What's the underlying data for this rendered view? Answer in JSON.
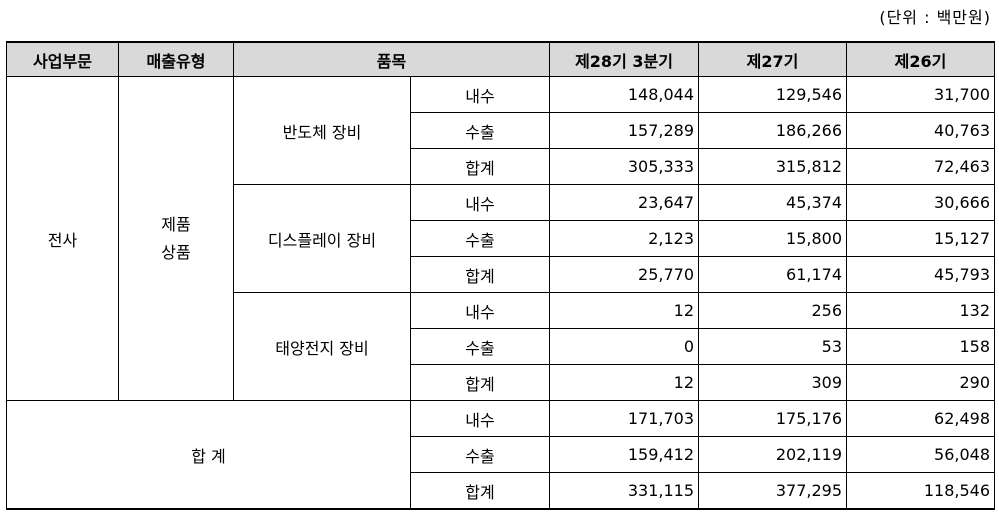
{
  "unit_note": "(단위 : 백만원)",
  "headers": [
    "사업부문",
    "매출유형",
    "품목",
    "제28기 3분기",
    "제27기",
    "제26기"
  ],
  "division": "전사",
  "sales_type": [
    "제품",
    "상품"
  ],
  "groups": [
    {
      "item": "반도체 장비",
      "rows": [
        {
          "type": "내수",
          "v28": "148,044",
          "v27": "129,546",
          "v26": "31,700"
        },
        {
          "type": "수출",
          "v28": "157,289",
          "v27": "186,266",
          "v26": "40,763"
        },
        {
          "type": "합계",
          "v28": "305,333",
          "v27": "315,812",
          "v26": "72,463"
        }
      ]
    },
    {
      "item": "디스플레이 장비",
      "rows": [
        {
          "type": "내수",
          "v28": "23,647",
          "v27": "45,374",
          "v26": "30,666"
        },
        {
          "type": "수출",
          "v28": "2,123",
          "v27": "15,800",
          "v26": "15,127"
        },
        {
          "type": "합계",
          "v28": "25,770",
          "v27": "61,174",
          "v26": "45,793"
        }
      ]
    },
    {
      "item": "태양전지 장비",
      "rows": [
        {
          "type": "내수",
          "v28": "12",
          "v27": "256",
          "v26": "132"
        },
        {
          "type": "수출",
          "v28": "0",
          "v27": "53",
          "v26": "158"
        },
        {
          "type": "합계",
          "v28": "12",
          "v27": "309",
          "v26": "290"
        }
      ]
    }
  ],
  "total": {
    "label": "합 계",
    "rows": [
      {
        "type": "내수",
        "v28": "171,703",
        "v27": "175,176",
        "v26": "62,498"
      },
      {
        "type": "수출",
        "v28": "159,412",
        "v27": "202,119",
        "v26": "56,048"
      },
      {
        "type": "합계",
        "v28": "331,115",
        "v27": "377,295",
        "v26": "118,546"
      }
    ]
  }
}
